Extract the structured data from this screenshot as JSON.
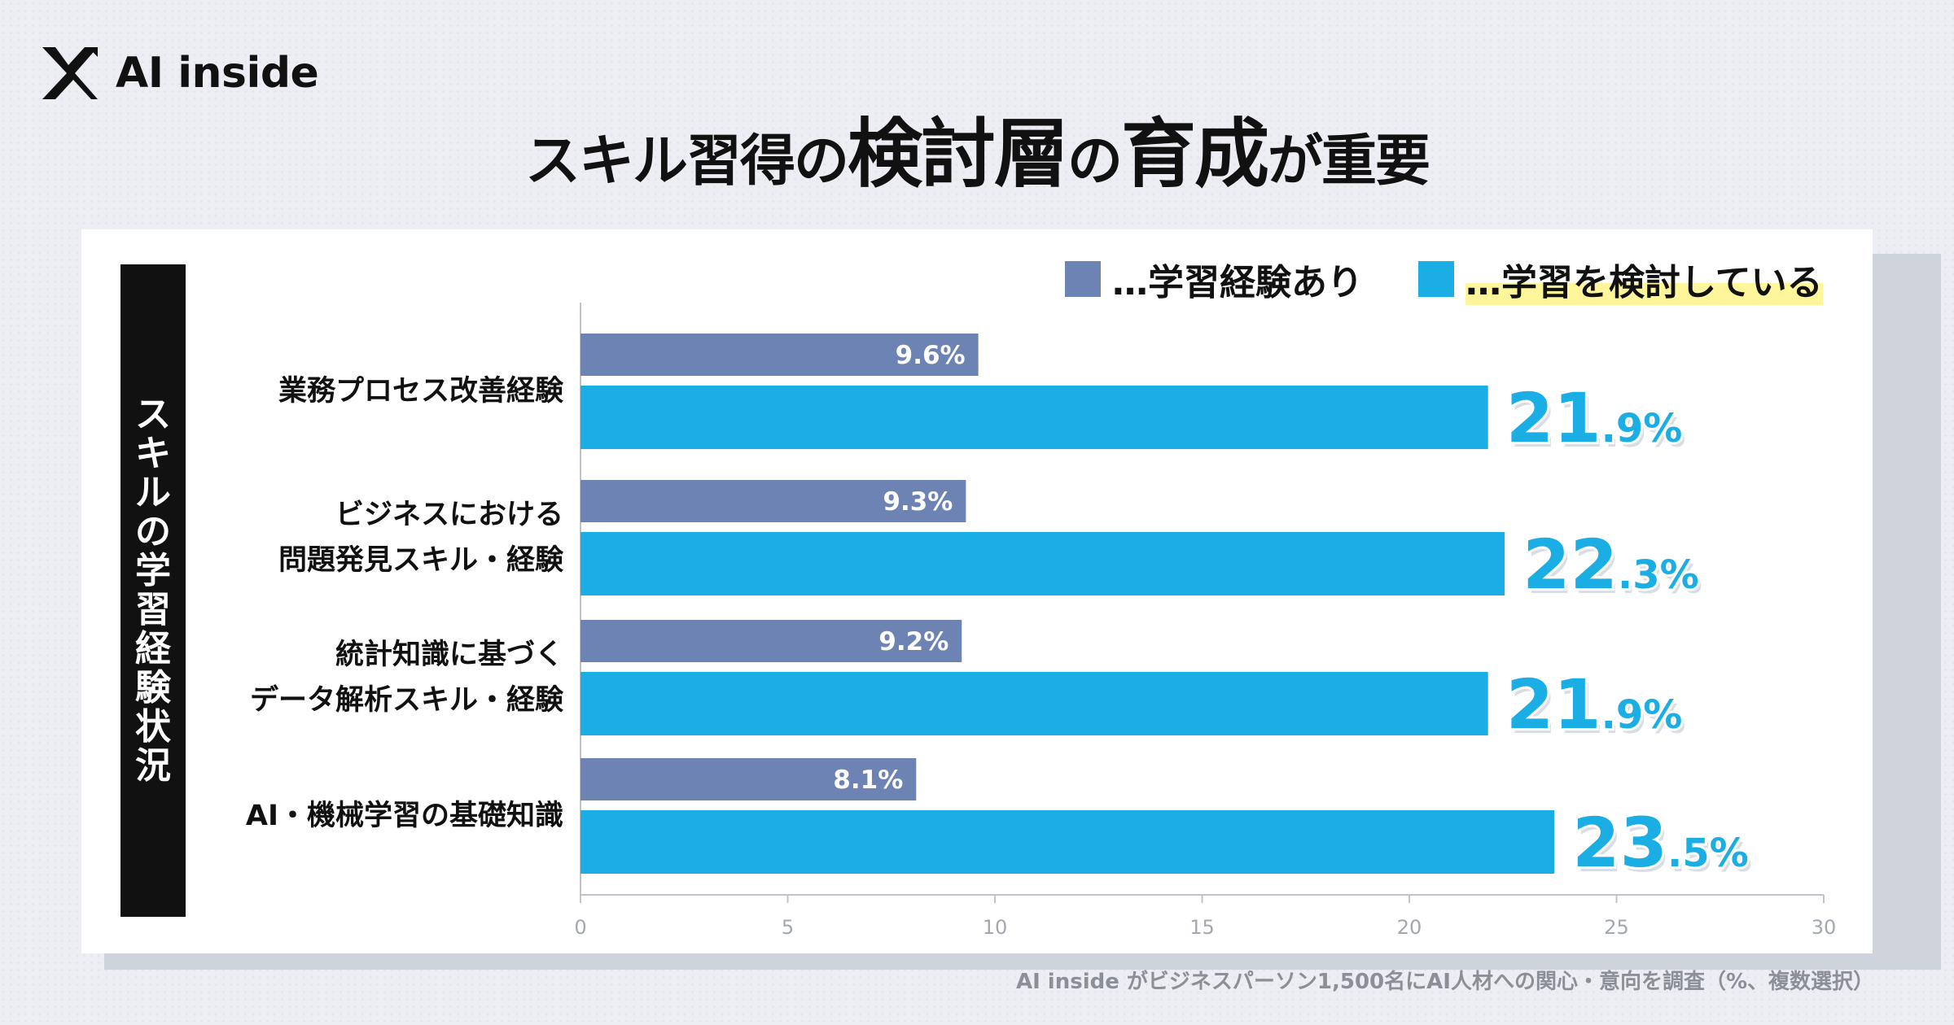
{
  "brand": {
    "name": "AI inside"
  },
  "title": {
    "parts": [
      {
        "text": "スキル習得の",
        "size": "sm"
      },
      {
        "text": "検討層",
        "size": "lg"
      },
      {
        "text": "の",
        "size": "sm"
      },
      {
        "text": "育成",
        "size": "lg"
      },
      {
        "text": "が重要",
        "size": "sm"
      }
    ]
  },
  "side_label": "スキルの学習経験状況",
  "legend": {
    "experienced": "…学習経験あり",
    "considering": "…学習を検討している"
  },
  "footnote": "AI inside がビジネスパーソン1,500名にAI人材への関心・意向を調査（%、複数選択）",
  "colors": {
    "experienced": "#6d83b3",
    "considering": "#1aaee5",
    "highlight": "#fff59a",
    "axis": "#bfc3cc"
  },
  "chart_data": {
    "type": "bar",
    "orientation": "horizontal",
    "categories": [
      [
        "業務プロセス改善経験"
      ],
      [
        "ビジネスにおける",
        "問題発見スキル・経験"
      ],
      [
        "統計知識に基づく",
        "データ解析スキル・経験"
      ],
      [
        "AI・機械学習の基礎知識"
      ]
    ],
    "series": [
      {
        "name": "学習経験あり",
        "values": [
          9.6,
          9.3,
          9.2,
          8.1
        ],
        "labels": [
          "9.6%",
          "9.3%",
          "9.2%",
          "8.1%"
        ]
      },
      {
        "name": "学習を検討している",
        "values": [
          21.9,
          22.3,
          21.9,
          23.5
        ],
        "labels": [
          "21.9%",
          "22.3%",
          "21.9%",
          "23.5%"
        ]
      }
    ],
    "xlim": [
      0,
      30
    ],
    "xticks": [
      "0",
      "5",
      "10",
      "15",
      "20",
      "25",
      "30"
    ],
    "xlabel": "",
    "ylabel": "スキルの学習経験状況",
    "legend_position": "top-right"
  }
}
